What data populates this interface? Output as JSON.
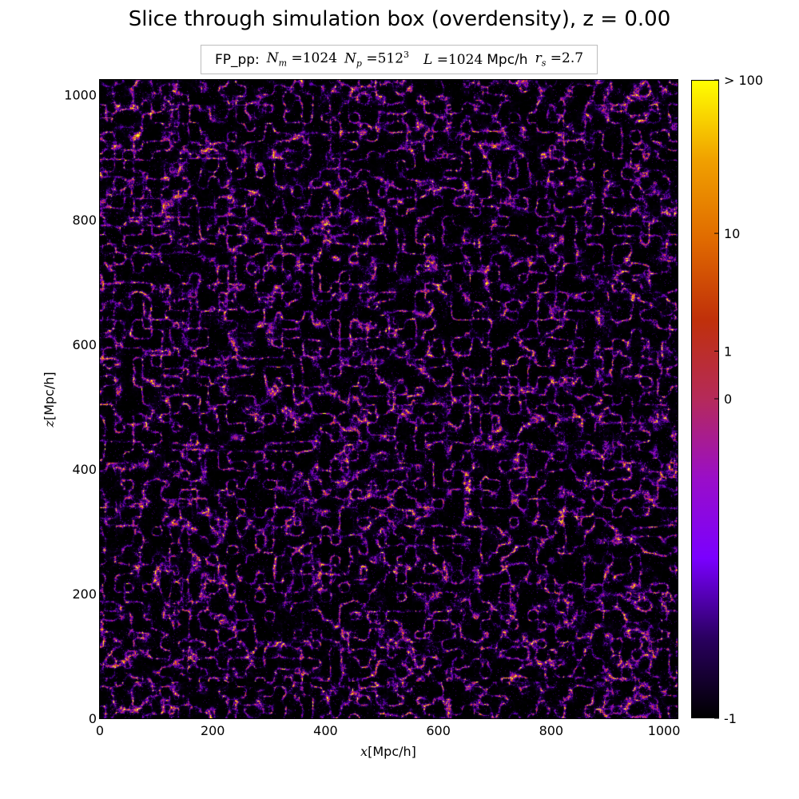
{
  "chart_data": {
    "type": "heatmap",
    "title": "Slice through simulation box (overdensity), z = 0.00",
    "legend": {
      "prefix": "FP_pp:",
      "Nm_symbol": "N",
      "Nm_sub": "m",
      "Nm_value": "=1024",
      "Np_symbol": "N",
      "Np_sub": "p",
      "Np_value": "=512",
      "Np_exp": "3",
      "L_symbol": "L",
      "L_value": "=1024",
      "L_unit": "Mpc/h",
      "rs_symbol": "r",
      "rs_sub": "s",
      "rs_value": "=2.7",
      "placement": "top-center"
    },
    "x_axis": {
      "label_var": "x",
      "label_unit": "[Mpc/h]",
      "range": [
        0,
        1024
      ],
      "ticks": [
        0,
        200,
        400,
        600,
        800,
        1000
      ],
      "tick_labels": [
        "0",
        "200",
        "400",
        "600",
        "800",
        "1000"
      ]
    },
    "z_axis": {
      "label_var": "z",
      "label_unit": "[Mpc/h]",
      "range": [
        0,
        1024
      ],
      "ticks": [
        0,
        200,
        400,
        600,
        800,
        1000
      ],
      "tick_labels": [
        "0",
        "200",
        "400",
        "600",
        "800",
        "1000"
      ]
    },
    "colorbar": {
      "colormap": "gnuplot2-like (black-purple-red-orange-yellow)",
      "scale": "log(1+delta)",
      "range": [
        -1,
        100
      ],
      "ticks": [
        -1,
        0,
        1,
        10,
        100
      ],
      "tick_labels": [
        "-1",
        "0",
        "1",
        "10",
        "> 100"
      ],
      "colors": [
        "#000000",
        "#2a0060",
        "#7a00ff",
        "#9a0ec8",
        "#b52a5a",
        "#c0300a",
        "#e06a00",
        "#f0a000",
        "#ffff00"
      ]
    },
    "grid": false,
    "field_description": "cosmic web of filaments, nodes and voids; density increases from black (voids) through purple to orange/yellow (nodes)"
  }
}
